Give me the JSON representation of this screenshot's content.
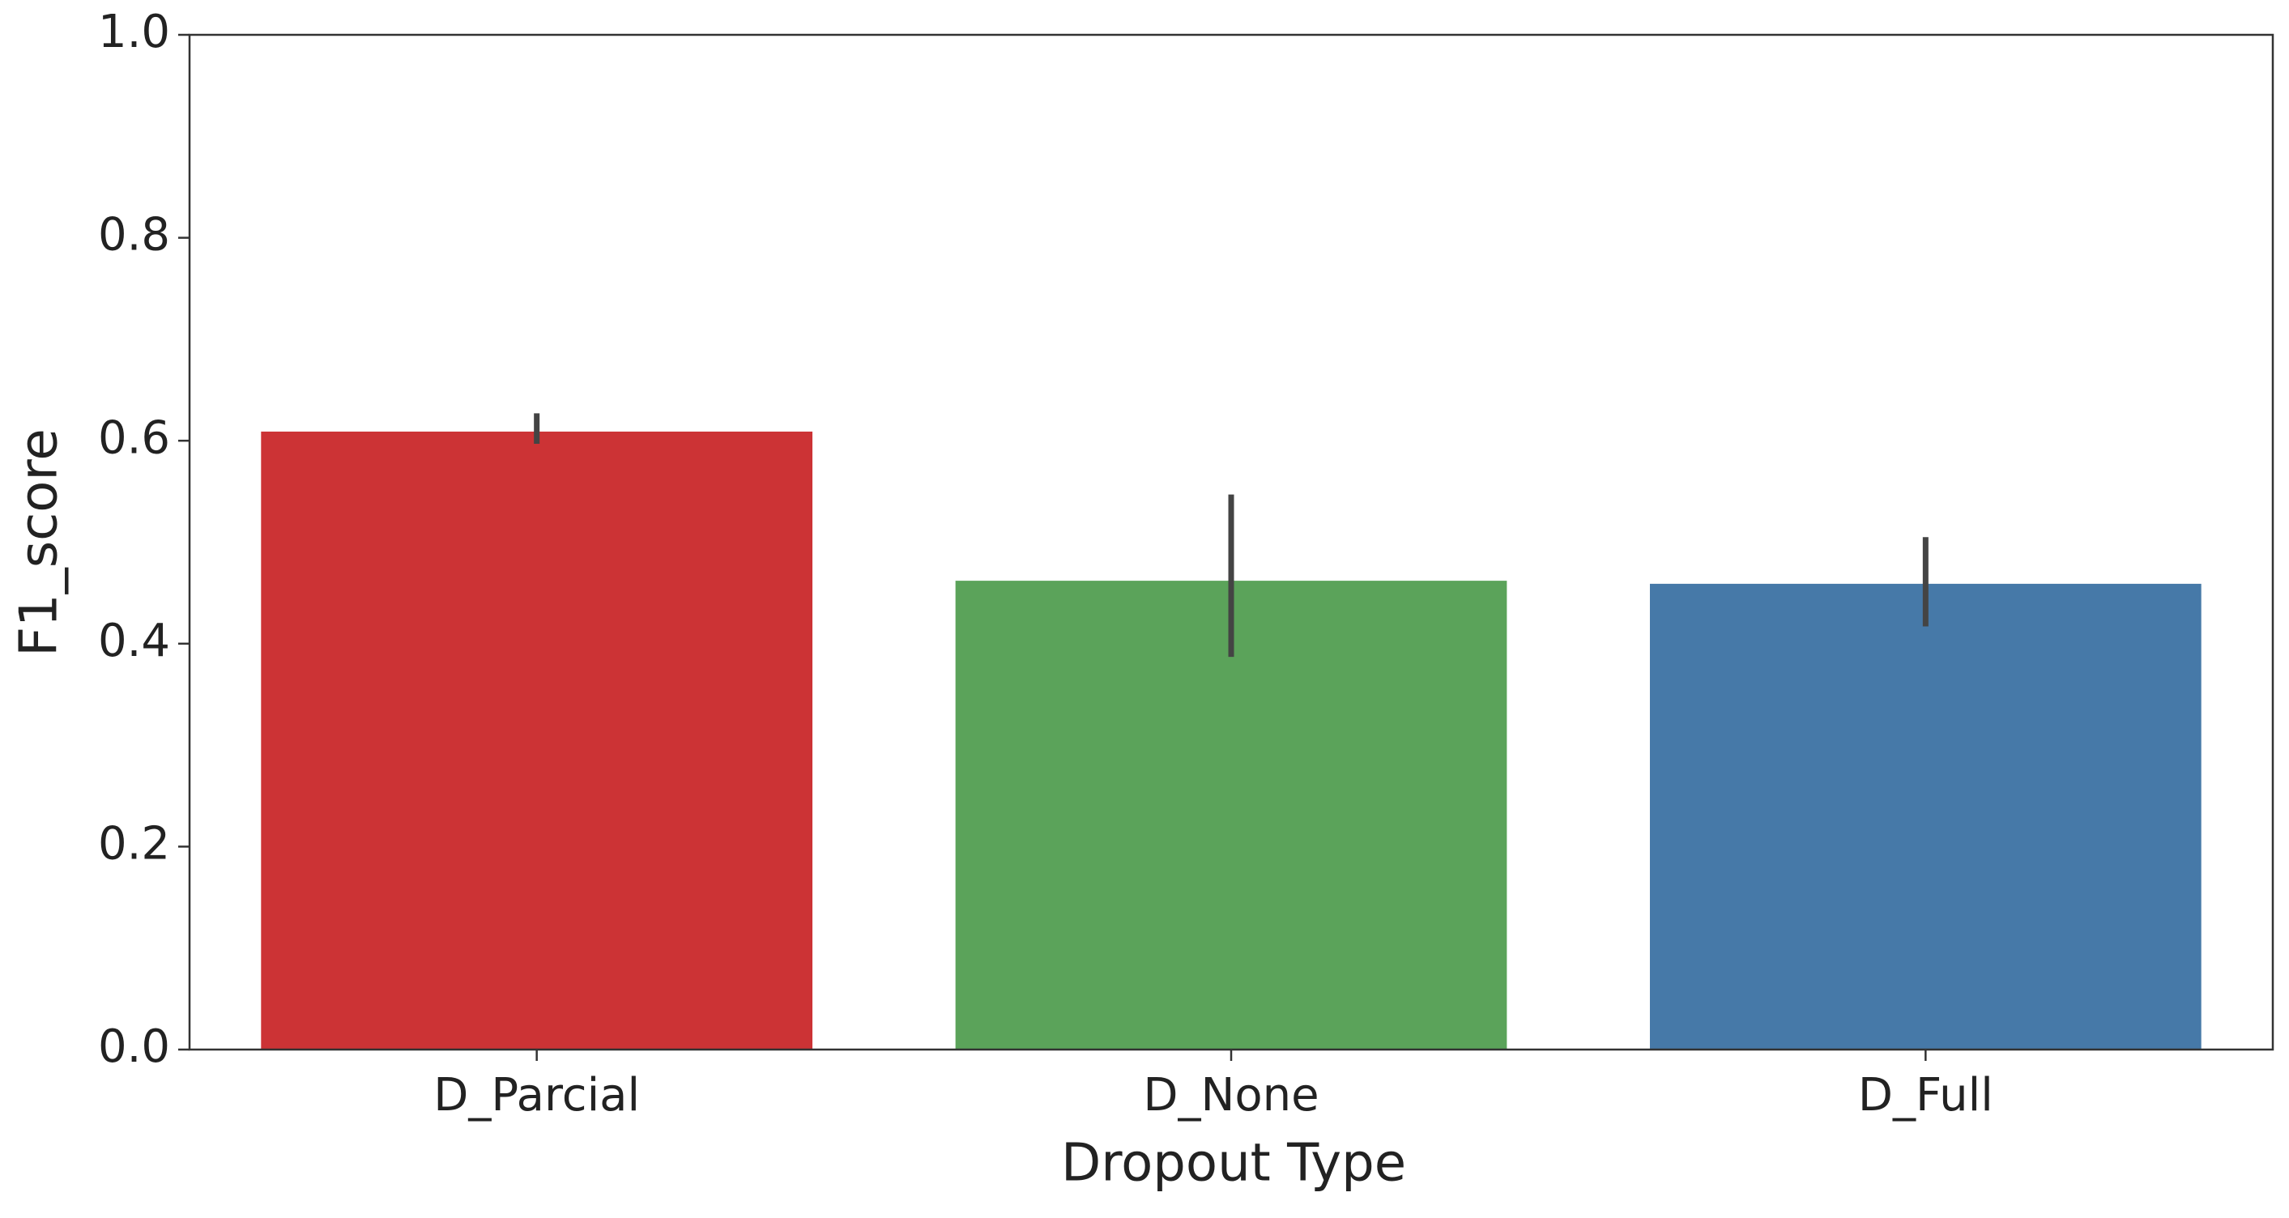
{
  "chart_data": {
    "type": "bar",
    "x_label": "Dropout Type",
    "y_label": "F1_score",
    "categories": [
      "D_Parcial",
      "D_None",
      "D_Full"
    ],
    "values": [
      0.609,
      0.462,
      0.459
    ],
    "error_low": [
      0.597,
      0.387,
      0.417
    ],
    "error_high": [
      0.627,
      0.547,
      0.505
    ],
    "colors": [
      "#cc3335",
      "#5ba35a",
      "#4679a8"
    ],
    "ylim": [
      0,
      1
    ],
    "yticks": [
      {
        "value": 0,
        "label": "0.0"
      },
      {
        "value": 0.2,
        "label": "0.2"
      },
      {
        "value": 0.4,
        "label": "0.4"
      },
      {
        "value": 0.6,
        "label": "0.6"
      },
      {
        "value": 0.8,
        "label": "0.8"
      },
      {
        "value": 1,
        "label": "1.0"
      }
    ],
    "grid": false
  }
}
